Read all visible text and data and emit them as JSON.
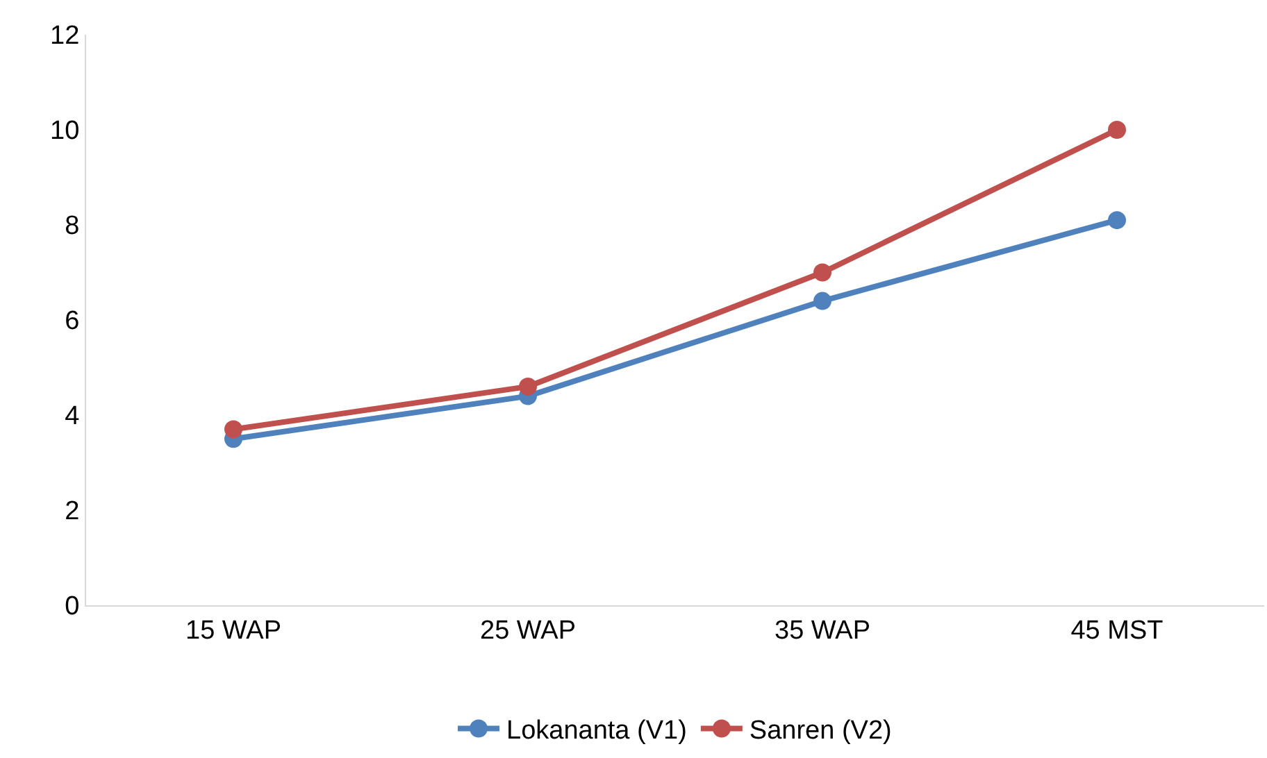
{
  "chart_data": {
    "type": "line",
    "categories": [
      "15 WAP",
      "25 WAP",
      "35 WAP",
      "45 MST"
    ],
    "series": [
      {
        "name": "Lokananta (V1)",
        "color": "#4f81bd",
        "values": [
          3.5,
          4.4,
          6.4,
          8.1
        ]
      },
      {
        "name": "Sanren (V2)",
        "color": "#c0504d",
        "values": [
          3.7,
          4.6,
          7.0,
          10.0
        ]
      }
    ],
    "ylim": [
      0,
      12
    ],
    "yticks": [
      0,
      2,
      4,
      6,
      8,
      10,
      12
    ],
    "legend": "bottom",
    "marker": "circle",
    "line_style": "solid"
  }
}
